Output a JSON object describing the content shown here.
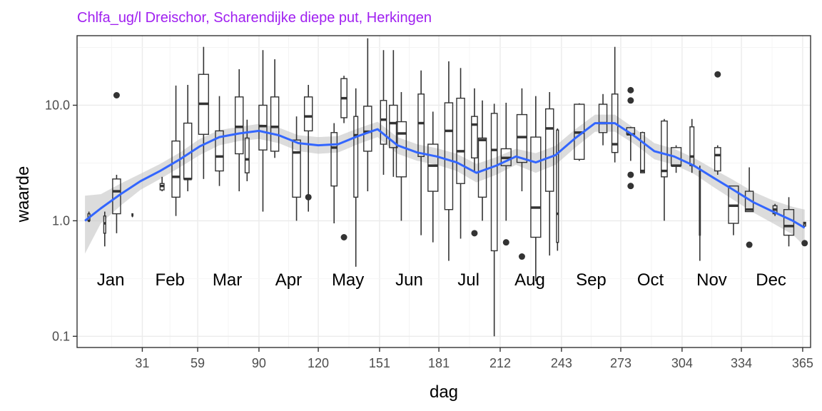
{
  "colors": {
    "title": "#a020f0",
    "smooth_line": "#3366ff",
    "ribbon": "#bfbfbf",
    "box_stroke": "#333333",
    "grid": "#ebebeb",
    "panel_border": "#333333"
  },
  "chart_data": {
    "type": "boxplot",
    "title": "Chlfa_ug/l Dreischor, Scharendijke diepe put, Herkingen",
    "xlabel": "dag",
    "ylabel": "waarde",
    "y_scale": "log10",
    "xlim": [
      -2,
      369
    ],
    "ylim": [
      0.08,
      40
    ],
    "x_ticks": [
      31,
      59,
      90,
      120,
      151,
      181,
      212,
      243,
      273,
      304,
      334,
      365
    ],
    "x_tick_labels": [
      "31",
      "59",
      "90",
      "120",
      "151",
      "181",
      "212",
      "243",
      "273",
      "304",
      "334",
      "365"
    ],
    "y_ticks": [
      0.1,
      1,
      10
    ],
    "y_tick_labels": [
      "0.1",
      "1.0",
      "10.0"
    ],
    "grid": true,
    "month_labels": [
      {
        "label": "Jan",
        "x": 15,
        "y": 0.31
      },
      {
        "label": "Feb",
        "x": 45,
        "y": 0.31
      },
      {
        "label": "Mar",
        "x": 74,
        "y": 0.31
      },
      {
        "label": "Apr",
        "x": 105,
        "y": 0.31
      },
      {
        "label": "May",
        "x": 135,
        "y": 0.31
      },
      {
        "label": "Jun",
        "x": 166,
        "y": 0.31
      },
      {
        "label": "Jul",
        "x": 196,
        "y": 0.31
      },
      {
        "label": "Aug",
        "x": 227,
        "y": 0.31
      },
      {
        "label": "Sep",
        "x": 258,
        "y": 0.31
      },
      {
        "label": "Oct",
        "x": 288,
        "y": 0.31
      },
      {
        "label": "Nov",
        "x": 319,
        "y": 0.31
      },
      {
        "label": "Dec",
        "x": 349,
        "y": 0.31
      }
    ],
    "boxes": [
      {
        "x": 4,
        "w": 1,
        "lo": 1.0,
        "q1": 1.0,
        "med": 1.0,
        "q3": 1.15,
        "hi": 1.2
      },
      {
        "x": 12,
        "w": 1,
        "lo": 0.6,
        "q1": 0.78,
        "med": 0.95,
        "q3": 1.1,
        "hi": 1.2
      },
      {
        "x": 18,
        "w": 4,
        "lo": 0.78,
        "q1": 1.15,
        "med": 1.8,
        "q3": 2.3,
        "hi": 2.5,
        "out": [
          12.2
        ]
      },
      {
        "x": 26,
        "w": 0.5,
        "lo": 1.1,
        "q1": 1.1,
        "med": 1.1,
        "q3": 1.15,
        "hi": 1.15
      },
      {
        "x": 41,
        "w": 2,
        "lo": 1.8,
        "q1": 1.85,
        "med": 2.0,
        "q3": 2.1,
        "hi": 2.4
      },
      {
        "x": 48,
        "w": 4,
        "lo": 1.1,
        "q1": 1.6,
        "med": 2.4,
        "q3": 4.9,
        "hi": 14.8
      },
      {
        "x": 54,
        "w": 4,
        "lo": 1.8,
        "q1": 2.3,
        "med": 2.3,
        "q3": 7.0,
        "hi": 15.0
      },
      {
        "x": 62,
        "w": 5,
        "lo": 2.3,
        "q1": 5.6,
        "med": 10.3,
        "q3": 18.5,
        "hi": 32.0
      },
      {
        "x": 70,
        "w": 4,
        "lo": 2.0,
        "q1": 2.7,
        "med": 3.6,
        "q3": 6.0,
        "hi": 12.0
      },
      {
        "x": 80,
        "w": 4,
        "lo": 1.8,
        "q1": 3.8,
        "med": 6.5,
        "q3": 11.8,
        "hi": 20.5
      },
      {
        "x": 84,
        "w": 2,
        "lo": 2.2,
        "q1": 2.6,
        "med": 3.4,
        "q3": 5.2,
        "hi": 7.5
      },
      {
        "x": 92,
        "w": 4,
        "lo": 1.2,
        "q1": 4.1,
        "med": 6.6,
        "q3": 10.0,
        "hi": 30.0
      },
      {
        "x": 98,
        "w": 4,
        "lo": 3.5,
        "q1": 4.0,
        "med": 6.5,
        "q3": 11.8,
        "hi": 25.0
      },
      {
        "x": 109,
        "w": 4,
        "lo": 1.0,
        "q1": 1.6,
        "med": 3.9,
        "q3": 5.0,
        "hi": 8.0
      },
      {
        "x": 115,
        "w": 4,
        "lo": 1.2,
        "q1": 6.0,
        "med": 8.0,
        "q3": 11.8,
        "hi": 15.0,
        "out": [
          1.6
        ]
      },
      {
        "x": 128,
        "w": 3,
        "lo": 0.95,
        "q1": 2.0,
        "med": 4.3,
        "q3": 5.8,
        "hi": 7.0
      },
      {
        "x": 133,
        "w": 3,
        "lo": 7.0,
        "q1": 7.8,
        "med": 11.5,
        "q3": 17.0,
        "hi": 18.0,
        "out": [
          0.72
        ]
      },
      {
        "x": 139,
        "w": 2,
        "lo": 0.4,
        "q1": 1.6,
        "med": 5.5,
        "q3": 8.0,
        "hi": 14.0
      },
      {
        "x": 145,
        "w": 4,
        "lo": 1.8,
        "q1": 4.0,
        "med": 5.9,
        "q3": 9.8,
        "hi": 38.0
      },
      {
        "x": 153,
        "w": 3,
        "lo": 2.5,
        "q1": 4.6,
        "med": 7.5,
        "q3": 11.0,
        "hi": 30.0
      },
      {
        "x": 158,
        "w": 4,
        "lo": 2.4,
        "q1": 4.3,
        "med": 7.0,
        "q3": 10.0,
        "hi": 30.0
      },
      {
        "x": 162,
        "w": 5,
        "lo": 1.0,
        "q1": 2.4,
        "med": 5.7,
        "q3": 7.2,
        "hi": 13.0
      },
      {
        "x": 172,
        "w": 3,
        "lo": 0.75,
        "q1": 3.6,
        "med": 7.0,
        "q3": 12.5,
        "hi": 20.0
      },
      {
        "x": 178,
        "w": 5,
        "lo": 0.65,
        "q1": 1.8,
        "med": 3.0,
        "q3": 4.6,
        "hi": 8.8
      },
      {
        "x": 186,
        "w": 4,
        "lo": 0.45,
        "q1": 1.25,
        "med": 6.0,
        "q3": 10.5,
        "hi": 24.0
      },
      {
        "x": 192,
        "w": 4,
        "lo": 0.7,
        "q1": 2.1,
        "med": 4.0,
        "q3": 11.5,
        "hi": 21.0
      },
      {
        "x": 199,
        "w": 3,
        "lo": 2.6,
        "q1": 3.5,
        "med": 6.8,
        "q3": 8.0,
        "hi": 14.0,
        "out": [
          0.78
        ]
      },
      {
        "x": 203,
        "w": 4,
        "lo": 1.0,
        "q1": 1.6,
        "med": 5.0,
        "q3": 5.2,
        "hi": 11.0
      },
      {
        "x": 209,
        "w": 3,
        "lo": 0.1,
        "q1": 0.55,
        "med": 4.1,
        "q3": 8.5,
        "hi": 10.3
      },
      {
        "x": 215,
        "w": 5,
        "lo": 1.0,
        "q1": 3.0,
        "med": 3.5,
        "q3": 4.2,
        "hi": 10.5,
        "out": [
          0.65
        ]
      },
      {
        "x": 223,
        "w": 5,
        "lo": 1.8,
        "q1": 3.2,
        "med": 5.3,
        "q3": 8.3,
        "hi": 14.0,
        "out": [
          0.49
        ]
      },
      {
        "x": 230,
        "w": 5,
        "lo": 0.3,
        "q1": 0.72,
        "med": 1.3,
        "q3": 5.3,
        "hi": 12.0
      },
      {
        "x": 237,
        "w": 4,
        "lo": 0.5,
        "q1": 1.8,
        "med": 6.3,
        "q3": 9.3,
        "hi": 13.0
      },
      {
        "x": 241,
        "w": 1,
        "lo": 0.55,
        "q1": 0.65,
        "med": 1.15,
        "q3": 6.1,
        "hi": 6.3
      },
      {
        "x": 252,
        "w": 5,
        "lo": 3.3,
        "q1": 3.4,
        "med": 5.8,
        "q3": 10.2,
        "hi": 10.4
      },
      {
        "x": 264,
        "w": 4,
        "lo": 4.5,
        "q1": 5.8,
        "med": 7.0,
        "q3": 10.2,
        "hi": 12.5
      },
      {
        "x": 270,
        "w": 3,
        "lo": 3.2,
        "q1": 3.9,
        "med": 4.6,
        "q3": 12.5,
        "hi": 32.0
      },
      {
        "x": 278,
        "w": 4,
        "lo": 3.3,
        "q1": 5.6,
        "med": 5.6,
        "q3": 6.4,
        "hi": 6.5,
        "out": [
          13.5,
          11.0,
          2.5,
          2.0
        ]
      },
      {
        "x": 284,
        "w": 2,
        "lo": 2.6,
        "q1": 2.6,
        "med": 2.7,
        "q3": 5.8,
        "hi": 5.9
      },
      {
        "x": 295,
        "w": 3,
        "lo": 1.0,
        "q1": 2.4,
        "med": 2.7,
        "q3": 7.3,
        "hi": 7.6
      },
      {
        "x": 301,
        "w": 5,
        "lo": 2.6,
        "q1": 3.0,
        "med": 3.0,
        "q3": 4.3,
        "hi": 4.5
      },
      {
        "x": 309,
        "w": 2,
        "lo": 2.6,
        "q1": 3.0,
        "med": 3.6,
        "q3": 6.5,
        "hi": 7.6
      },
      {
        "x": 313,
        "w": 0.5,
        "lo": 0.45,
        "q1": 0.75,
        "med": 1.3,
        "q3": 2.7,
        "hi": 3.0
      },
      {
        "x": 322,
        "w": 3,
        "lo": 2.5,
        "q1": 2.7,
        "med": 3.7,
        "q3": 4.3,
        "hi": 4.5,
        "out": [
          18.5
        ]
      },
      {
        "x": 330,
        "w": 5,
        "lo": 0.75,
        "q1": 0.95,
        "med": 1.35,
        "q3": 2.0,
        "hi": 2.0
      },
      {
        "x": 338,
        "w": 4,
        "lo": 1.2,
        "q1": 1.2,
        "med": 1.25,
        "q3": 1.8,
        "hi": 2.9,
        "out": [
          0.62
        ]
      },
      {
        "x": 351,
        "w": 2,
        "lo": 1.1,
        "q1": 1.15,
        "med": 1.25,
        "q3": 1.35,
        "hi": 1.4
      },
      {
        "x": 358,
        "w": 5,
        "lo": 0.6,
        "q1": 0.75,
        "med": 0.9,
        "q3": 1.25,
        "hi": 1.6
      },
      {
        "x": 366,
        "w": 1,
        "lo": 0.9,
        "q1": 0.9,
        "med": 0.95,
        "q3": 0.97,
        "hi": 0.97,
        "out": [
          0.64
        ]
      }
    ],
    "smooth": {
      "x": [
        2,
        10,
        20,
        30,
        40,
        50,
        60,
        70,
        80,
        90,
        100,
        110,
        120,
        130,
        140,
        150,
        160,
        170,
        180,
        190,
        200,
        210,
        220,
        230,
        240,
        250,
        260,
        270,
        280,
        290,
        300,
        310,
        320,
        330,
        340,
        350,
        360,
        366
      ],
      "y": [
        1.0,
        1.28,
        1.7,
        2.2,
        2.7,
        3.4,
        4.4,
        5.3,
        5.7,
        6.0,
        5.5,
        4.7,
        4.5,
        4.6,
        5.4,
        6.2,
        4.5,
        3.9,
        3.6,
        3.2,
        2.6,
        3.0,
        3.6,
        3.2,
        3.7,
        5.2,
        7.0,
        7.0,
        5.4,
        4.0,
        3.6,
        3.0,
        2.35,
        1.85,
        1.45,
        1.2,
        1.0,
        0.87
      ],
      "lo": [
        0.52,
        0.95,
        1.35,
        1.85,
        2.3,
        2.9,
        3.7,
        4.5,
        4.9,
        5.1,
        4.7,
        4.0,
        3.8,
        3.9,
        4.6,
        5.3,
        3.8,
        3.3,
        3.05,
        2.7,
        2.15,
        2.5,
        3.05,
        2.6,
        3.05,
        4.3,
        5.9,
        5.9,
        4.6,
        3.4,
        3.05,
        2.55,
        1.95,
        1.52,
        1.18,
        0.95,
        0.76,
        0.6
      ],
      "hi": [
        1.65,
        1.7,
        2.1,
        2.55,
        3.1,
        3.9,
        5.1,
        6.1,
        6.5,
        6.9,
        6.4,
        5.5,
        5.3,
        5.4,
        6.3,
        7.2,
        5.3,
        4.6,
        4.25,
        3.8,
        3.1,
        3.55,
        4.2,
        3.85,
        4.45,
        6.2,
        8.3,
        8.3,
        6.3,
        4.7,
        4.2,
        3.5,
        2.8,
        2.25,
        1.78,
        1.5,
        1.32,
        1.25
      ]
    }
  }
}
